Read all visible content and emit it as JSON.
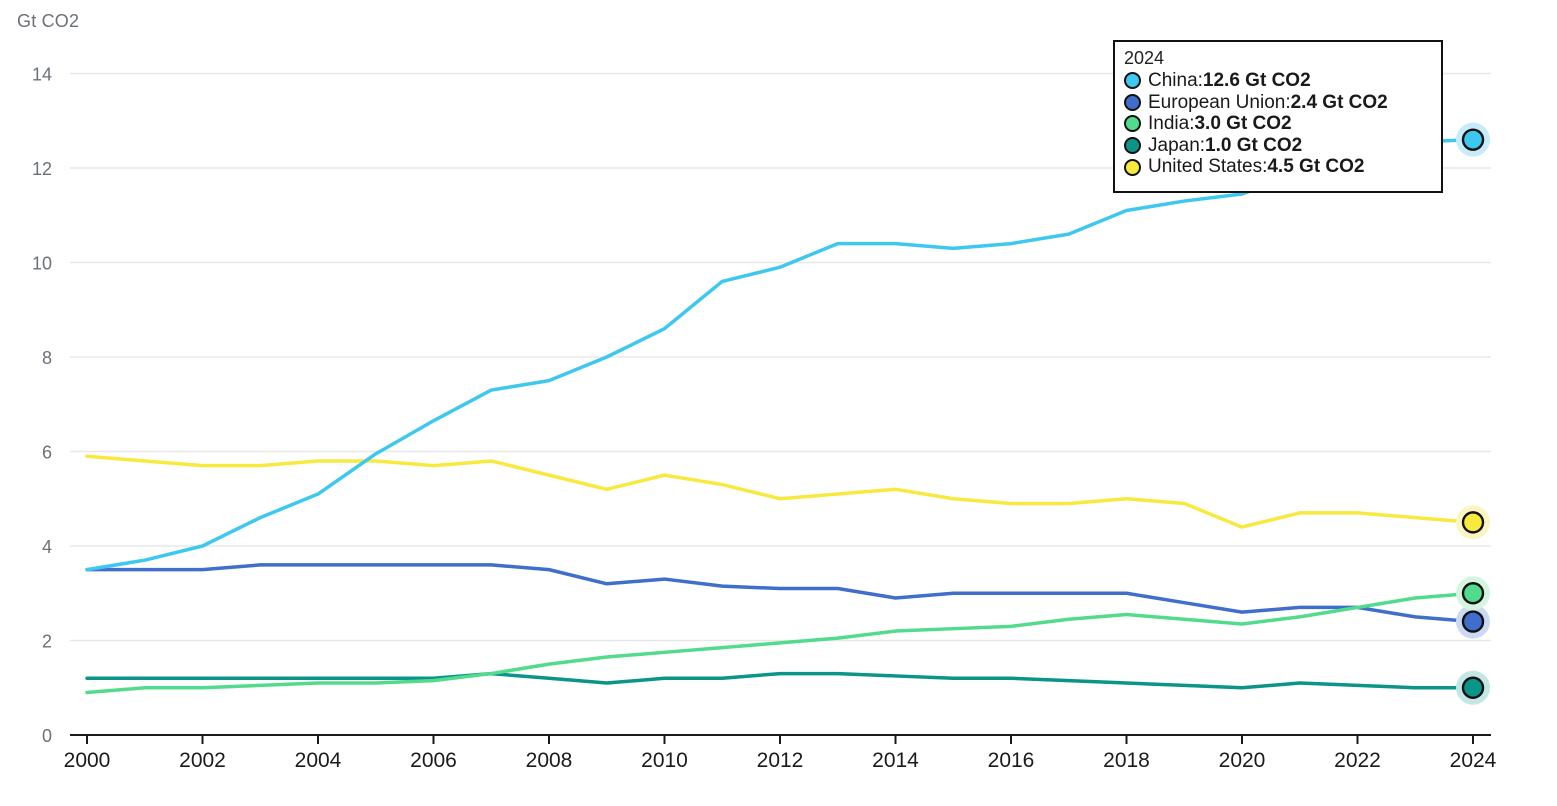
{
  "axis_unit_label": "Gt CO2",
  "colors": {
    "background": "#ffffff",
    "grid": "#e8e8e8",
    "axis": "#1a1a1a",
    "x_tick_label": "#1b1b1b",
    "y_tick_label": "#6c7079",
    "tooltip_border": "#111111",
    "tooltip_bg": "#ffffff",
    "marker_ring": "#111111"
  },
  "tooltip": {
    "year": "2024",
    "rows": [
      {
        "label": "China",
        "value": "12.6 Gt CO2"
      },
      {
        "label": "European Union",
        "value": "2.4 Gt CO2"
      },
      {
        "label": "India",
        "value": "3.0 Gt CO2"
      },
      {
        "label": "Japan",
        "value": "1.0 Gt CO2"
      },
      {
        "label": "United States",
        "value": "4.5 Gt CO2"
      }
    ]
  },
  "chart_data": {
    "type": "line",
    "title": "",
    "xlabel": "",
    "ylabel": "Gt CO2",
    "ylim": [
      0,
      14
    ],
    "xlim": [
      2000,
      2024
    ],
    "grid": "horizontal-only",
    "legend_position": "tooltip-overlay-top-right",
    "x": [
      2000,
      2001,
      2002,
      2003,
      2004,
      2005,
      2006,
      2007,
      2008,
      2009,
      2010,
      2011,
      2012,
      2013,
      2014,
      2015,
      2016,
      2017,
      2018,
      2019,
      2020,
      2021,
      2022,
      2023,
      2024
    ],
    "xticks": [
      2000,
      2002,
      2004,
      2006,
      2008,
      2010,
      2012,
      2014,
      2016,
      2018,
      2020,
      2022,
      2024
    ],
    "yticks": [
      0,
      2,
      4,
      6,
      8,
      10,
      12,
      14
    ],
    "series": [
      {
        "name": "China",
        "color": "#3ec8f0",
        "halo": "#c7ebfa",
        "values": [
          3.5,
          3.7,
          4.0,
          4.6,
          5.1,
          5.95,
          6.65,
          7.3,
          7.5,
          8.0,
          8.6,
          9.6,
          9.9,
          10.4,
          10.4,
          10.3,
          10.4,
          10.6,
          11.1,
          11.3,
          11.45,
          11.9,
          12.3,
          12.55,
          12.6
        ]
      },
      {
        "name": "European Union",
        "color": "#3f6fca",
        "halo": "#cbd9f4",
        "values": [
          3.5,
          3.5,
          3.5,
          3.6,
          3.6,
          3.6,
          3.6,
          3.6,
          3.5,
          3.2,
          3.3,
          3.15,
          3.1,
          3.1,
          2.9,
          3.0,
          3.0,
          3.0,
          3.0,
          2.8,
          2.6,
          2.7,
          2.7,
          2.5,
          2.4
        ]
      },
      {
        "name": "India",
        "color": "#53db8d",
        "halo": "#d4f6e0",
        "values": [
          0.9,
          1.0,
          1.0,
          1.05,
          1.1,
          1.1,
          1.15,
          1.3,
          1.5,
          1.65,
          1.75,
          1.85,
          1.95,
          2.05,
          2.2,
          2.25,
          2.3,
          2.45,
          2.55,
          2.45,
          2.35,
          2.5,
          2.7,
          2.9,
          3.0
        ]
      },
      {
        "name": "Japan",
        "color": "#0b9589",
        "halo": "#c2e7e4",
        "values": [
          1.2,
          1.2,
          1.2,
          1.2,
          1.2,
          1.2,
          1.2,
          1.3,
          1.2,
          1.1,
          1.2,
          1.2,
          1.3,
          1.3,
          1.25,
          1.2,
          1.2,
          1.15,
          1.1,
          1.05,
          1.0,
          1.1,
          1.05,
          1.0,
          1.0
        ]
      },
      {
        "name": "United States",
        "color": "#f8e93f",
        "halo": "#fbf5c4",
        "values": [
          5.9,
          5.8,
          5.7,
          5.7,
          5.8,
          5.8,
          5.7,
          5.8,
          5.5,
          5.2,
          5.5,
          5.3,
          5.0,
          5.1,
          5.2,
          5.0,
          4.9,
          4.9,
          5.0,
          4.9,
          4.4,
          4.7,
          4.7,
          4.6,
          4.5
        ]
      }
    ],
    "draw_order": [
      "United States",
      "Japan",
      "European Union",
      "India",
      "China"
    ],
    "end_markers": true
  }
}
